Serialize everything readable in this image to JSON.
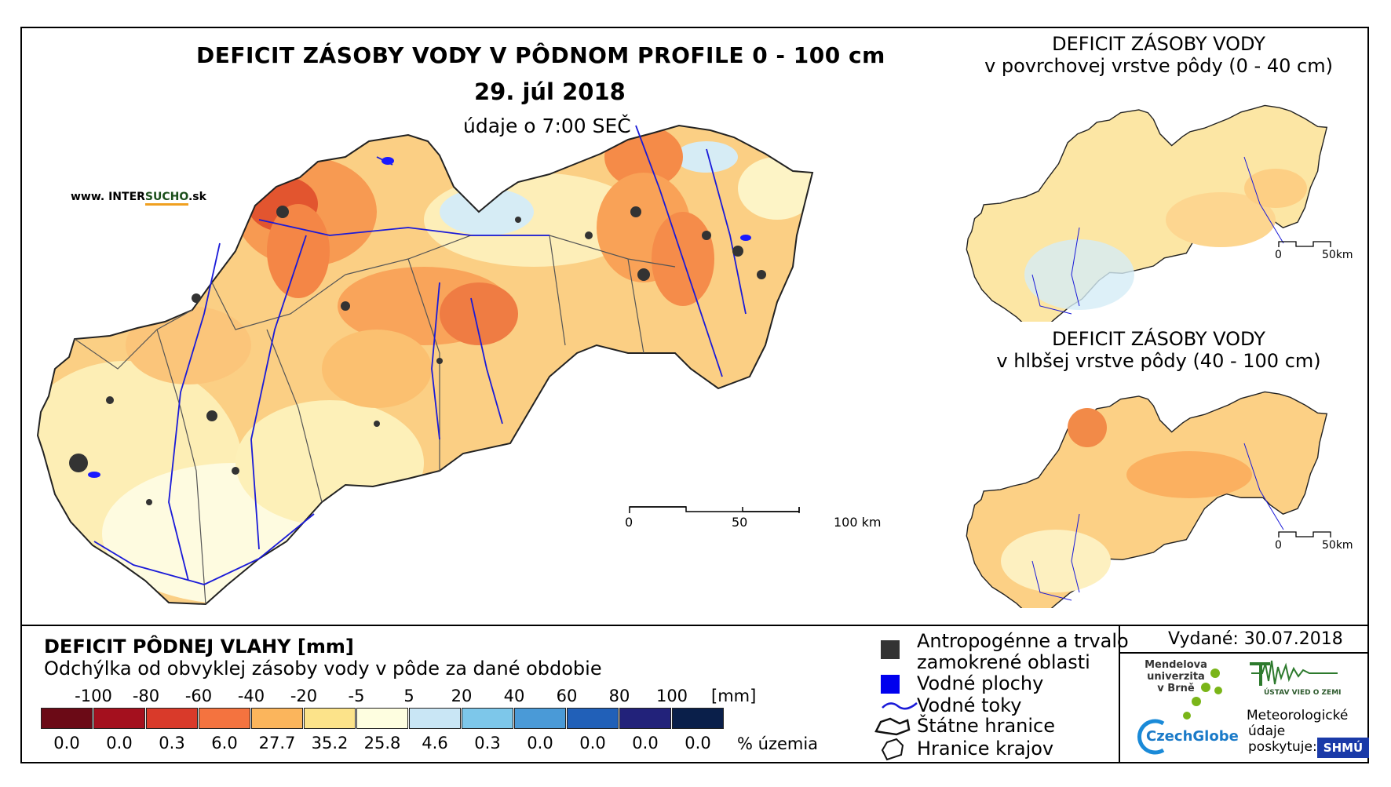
{
  "main_title": "DEFICIT ZÁSOBY VODY V PÔDNOM PROFILE 0 - 100 cm",
  "date": "29. júl 2018",
  "hour": "údaje o 7:00 SEČ",
  "website": {
    "prefix": "www. INTER",
    "mid": "SUCHO",
    "suffix": ".sk"
  },
  "main_scale": [
    "0",
    "50",
    "100 km"
  ],
  "inset_top": {
    "title_line1": "DEFICIT ZÁSOBY VODY",
    "title_line2": "v povrchovej vrstve pôdy (0 - 40 cm)",
    "scale": [
      "0",
      "50km"
    ]
  },
  "inset_bottom": {
    "title_line1": "DEFICIT ZÁSOBY VODY",
    "title_line2": "v hlbšej vrstve pôdy (40 - 100 cm)",
    "scale": [
      "0",
      "50km"
    ]
  },
  "legend": {
    "title": "DEFICIT PÔDNEJ VLAHY [mm]",
    "subtitle": "Odchýlka od obvyklej zásoby vody v pôde za dané obdobie",
    "unit": "[mm]",
    "pct_unit": "% územia",
    "colors": [
      "#6b0a16",
      "#a4101e",
      "#d93a2a",
      "#f4733f",
      "#fbb55c",
      "#fce38a",
      "#fefee0",
      "#c9e6f5",
      "#7dc7ea",
      "#4a9ad7",
      "#2160b8",
      "#22227a",
      "#0a1f4a"
    ],
    "bounds": [
      "-100",
      "-80",
      "-60",
      "-40",
      "-20",
      "-5",
      "5",
      "20",
      "40",
      "60",
      "80",
      "100"
    ],
    "percents": [
      "0.0",
      "0.0",
      "0.3",
      "6.0",
      "27.7",
      "35.2",
      "25.8",
      "4.6",
      "0.3",
      "0.0",
      "0.0",
      "0.0",
      "0.0"
    ]
  },
  "key": {
    "urban": [
      "Antropogénne a trvalo",
      "zamokrené oblasti"
    ],
    "water": "Vodné plochy",
    "rivers": "Vodné toky",
    "border": "Štátne hranice",
    "regions": "Hranice krajov"
  },
  "issued": "Vydané: 30.07.2018",
  "logos": {
    "mendel": [
      "Mendelova",
      "univerzita",
      "v Brně"
    ],
    "czechglobe": "CzechGlobe",
    "uvz": "ÚSTAV VIED O ZEMI",
    "meteo": [
      "Meteorologické",
      "údaje",
      "poskytuje:"
    ],
    "shmu": "SHMÚ"
  }
}
